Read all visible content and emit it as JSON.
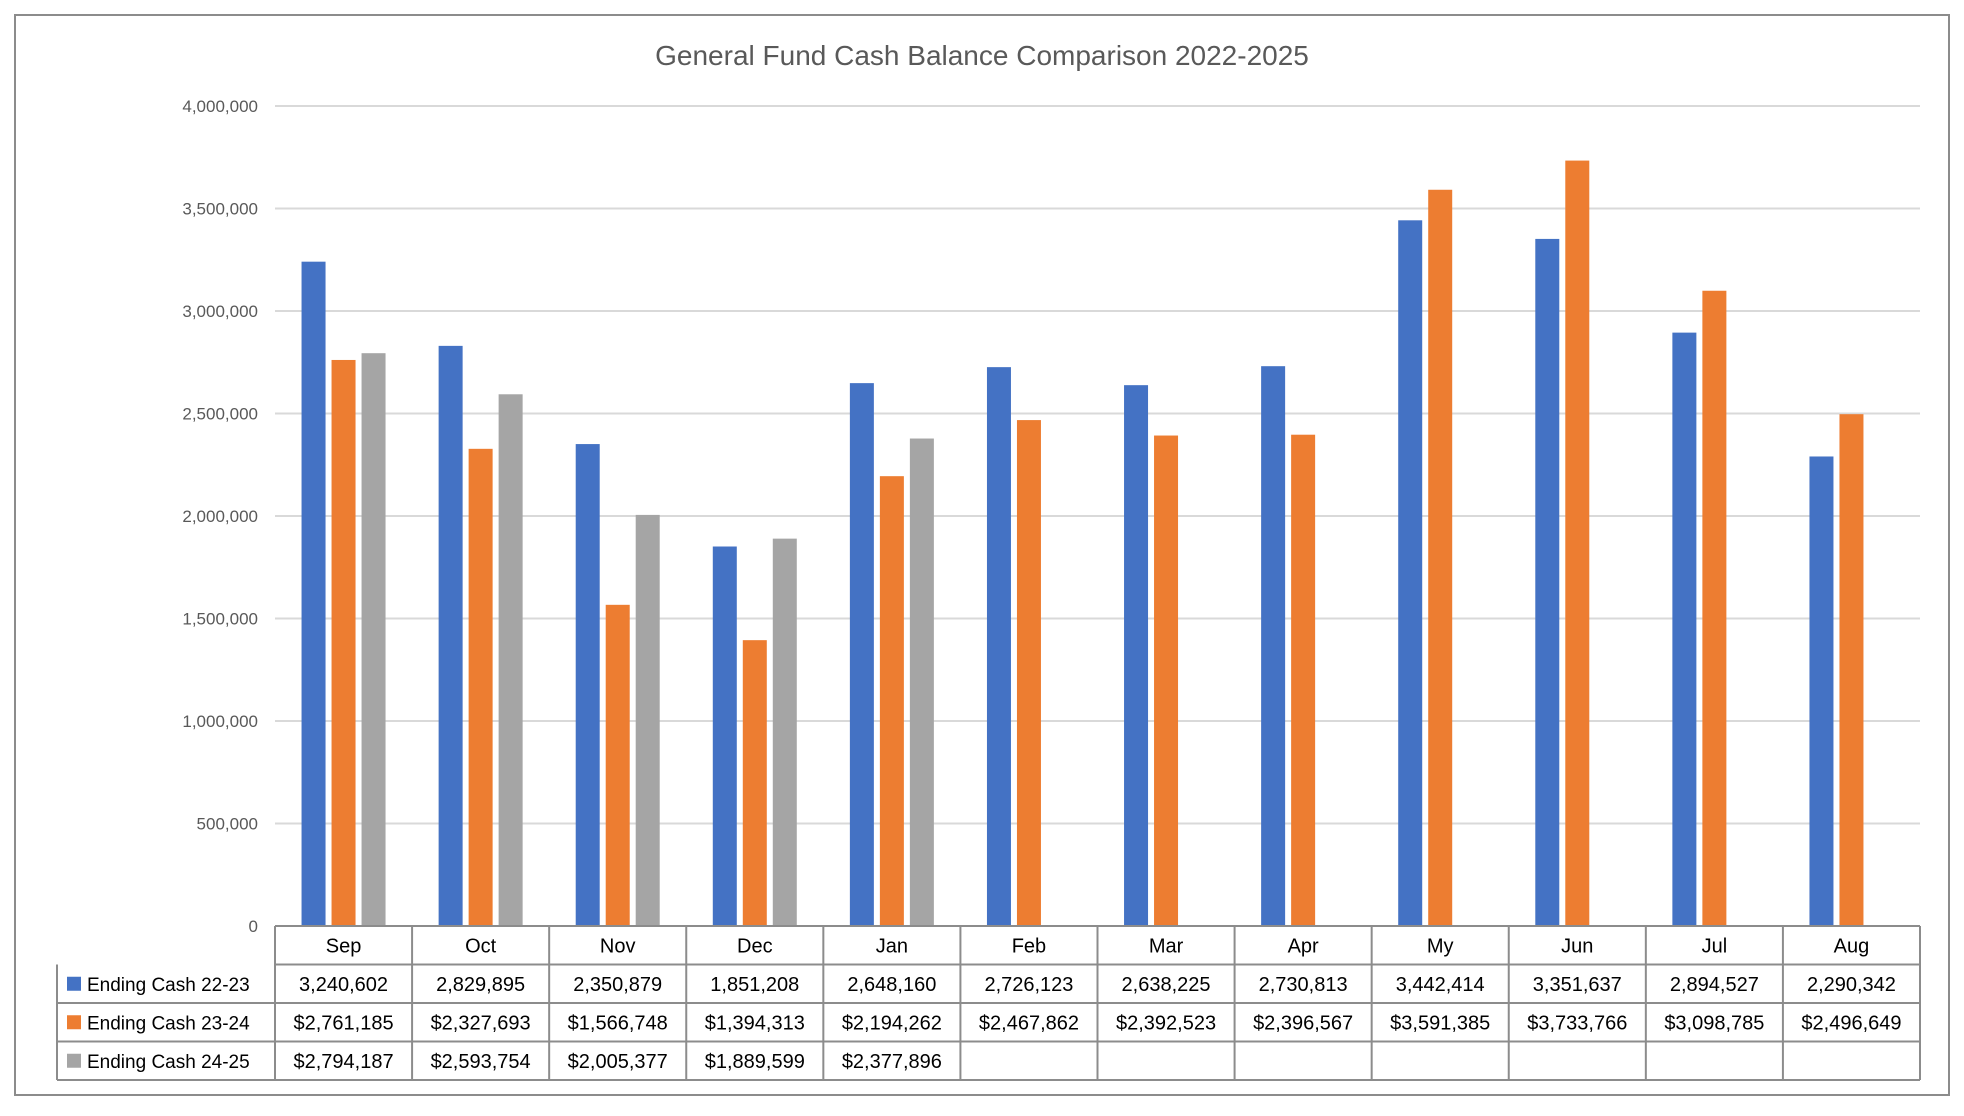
{
  "chart_data": {
    "type": "bar",
    "title": "General Fund  Cash Balance Comparison 2022-2025",
    "xlabel": "",
    "ylabel": "",
    "ylim": [
      0,
      4000000
    ],
    "yticks": [
      0,
      500000,
      1000000,
      1500000,
      2000000,
      2500000,
      3000000,
      3500000,
      4000000
    ],
    "ytick_labels": [
      "0",
      "500,000",
      "1,000,000",
      "1,500,000",
      "2,000,000",
      "2,500,000",
      "3,000,000",
      "3,500,000",
      "4,000,000"
    ],
    "grid": true,
    "legend": "data-table",
    "categories": [
      "Sep",
      "Oct",
      "Nov",
      "Dec",
      "Jan",
      "Feb",
      "Mar",
      "Apr",
      "My",
      "Jun",
      "Jul",
      "Aug"
    ],
    "series": [
      {
        "name": "Ending Cash 22-23",
        "color": "#4472C4",
        "values": [
          3240602,
          2829895,
          2350879,
          1851208,
          2648160,
          2726123,
          2638225,
          2730813,
          3442414,
          3351637,
          2894527,
          2290342
        ],
        "labels": [
          "3,240,602",
          "2,829,895",
          "2,350,879",
          "1,851,208",
          "2,648,160",
          "2,726,123",
          "2,638,225",
          "2,730,813",
          "3,442,414",
          "3,351,637",
          "2,894,527",
          "2,290,342"
        ]
      },
      {
        "name": "Ending Cash 23-24",
        "color": "#ED7D31",
        "values": [
          2761185,
          2327693,
          1566748,
          1394313,
          2194262,
          2467862,
          2392523,
          2396567,
          3591385,
          3733766,
          3098785,
          2496649
        ],
        "labels": [
          "$2,761,185",
          "$2,327,693",
          "$1,566,748",
          "$1,394,313",
          "$2,194,262",
          "$2,467,862",
          "$2,392,523",
          "$2,396,567",
          "$3,591,385",
          "$3,733,766",
          "$3,098,785",
          "$2,496,649"
        ]
      },
      {
        "name": "Ending Cash 24-25",
        "color": "#A5A5A5",
        "values": [
          2794187,
          2593754,
          2005377,
          1889599,
          2377896,
          null,
          null,
          null,
          null,
          null,
          null,
          null
        ],
        "labels": [
          "$2,794,187",
          "$2,593,754",
          "$2,005,377",
          "$1,889,599",
          "$2,377,896",
          "",
          "",
          "",
          "",
          "",
          "",
          ""
        ]
      }
    ]
  }
}
